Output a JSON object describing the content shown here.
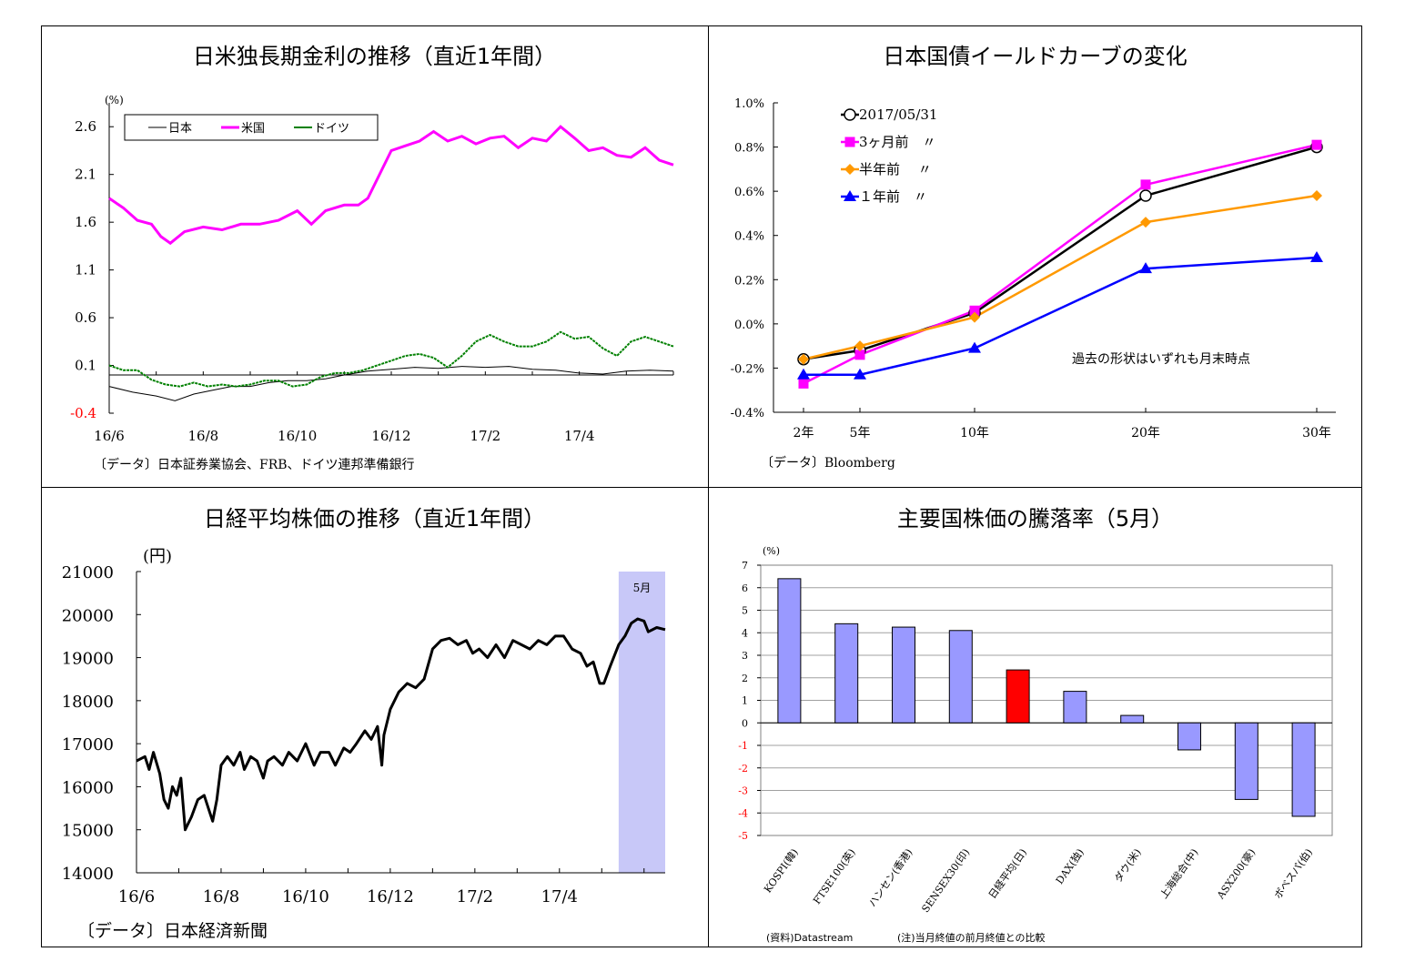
{
  "panel1": {
    "title": "日米独長期金利の推移（直近1年間）",
    "unit": "(%)",
    "source": "〔データ〕日本証券業協会、FRB、ドイツ連邦準備銀行"
  },
  "panel2": {
    "title": "日本国債イールドカーブの変化",
    "note": "過去の形状はいずれも月末時点",
    "source": "〔データ〕Bloomberg"
  },
  "panel3": {
    "title": "日経平均株価の推移（直近1年間）",
    "unit": "(円)",
    "highlight_label": "5月",
    "source": "〔データ〕日本経済新聞"
  },
  "panel4": {
    "title": "主要国株価の騰落率（5月）",
    "unit": "(%)",
    "source_left": "(資料)Datastream",
    "source_right": "(注)当月終値の前月終値との比較"
  },
  "chart_data": [
    {
      "type": "line",
      "title": "日米独長期金利の推移（直近1年間）",
      "ylabel": "(%)",
      "ylim": [
        -0.4,
        2.85
      ],
      "yticks": [
        -0.4,
        0.1,
        0.6,
        1.1,
        1.6,
        2.1,
        2.6
      ],
      "x_ticks": [
        "16/6",
        "16/8",
        "16/10",
        "16/12",
        "17/2",
        "17/4"
      ],
      "x_range_months": [
        0,
        12
      ],
      "legend": "top-left",
      "series": [
        {
          "name": "日本",
          "color": "#000000",
          "points": [
            [
              0,
              -0.12
            ],
            [
              0.5,
              -0.18
            ],
            [
              1,
              -0.22
            ],
            [
              1.4,
              -0.27
            ],
            [
              1.8,
              -0.2
            ],
            [
              2.2,
              -0.16
            ],
            [
              2.6,
              -0.12
            ],
            [
              3.0,
              -0.12
            ],
            [
              3.4,
              -0.08
            ],
            [
              3.8,
              -0.06
            ],
            [
              4.2,
              -0.06
            ],
            [
              4.6,
              -0.04
            ],
            [
              5.0,
              0.0
            ],
            [
              5.5,
              0.04
            ],
            [
              6.0,
              0.06
            ],
            [
              6.5,
              0.08
            ],
            [
              7.0,
              0.07
            ],
            [
              7.5,
              0.09
            ],
            [
              8.0,
              0.08
            ],
            [
              8.5,
              0.09
            ],
            [
              9.0,
              0.06
            ],
            [
              9.5,
              0.05
            ],
            [
              10.0,
              0.02
            ],
            [
              10.5,
              0.01
            ],
            [
              11.0,
              0.04
            ],
            [
              11.5,
              0.05
            ],
            [
              12.0,
              0.04
            ]
          ]
        },
        {
          "name": "米国",
          "color": "#ff00ff",
          "points": [
            [
              0,
              1.85
            ],
            [
              0.3,
              1.75
            ],
            [
              0.6,
              1.62
            ],
            [
              0.9,
              1.58
            ],
            [
              1.1,
              1.45
            ],
            [
              1.3,
              1.38
            ],
            [
              1.6,
              1.5
            ],
            [
              2.0,
              1.55
            ],
            [
              2.4,
              1.52
            ],
            [
              2.8,
              1.58
            ],
            [
              3.2,
              1.58
            ],
            [
              3.6,
              1.62
            ],
            [
              4.0,
              1.72
            ],
            [
              4.3,
              1.58
            ],
            [
              4.6,
              1.72
            ],
            [
              5.0,
              1.78
            ],
            [
              5.3,
              1.78
            ],
            [
              5.5,
              1.85
            ],
            [
              5.8,
              2.15
            ],
            [
              6.0,
              2.35
            ],
            [
              6.3,
              2.4
            ],
            [
              6.6,
              2.45
            ],
            [
              6.9,
              2.55
            ],
            [
              7.2,
              2.45
            ],
            [
              7.5,
              2.5
            ],
            [
              7.8,
              2.42
            ],
            [
              8.1,
              2.48
            ],
            [
              8.4,
              2.5
            ],
            [
              8.7,
              2.38
            ],
            [
              9.0,
              2.48
            ],
            [
              9.3,
              2.45
            ],
            [
              9.6,
              2.6
            ],
            [
              9.9,
              2.48
            ],
            [
              10.2,
              2.35
            ],
            [
              10.5,
              2.38
            ],
            [
              10.8,
              2.3
            ],
            [
              11.1,
              2.28
            ],
            [
              11.4,
              2.38
            ],
            [
              11.7,
              2.25
            ],
            [
              12.0,
              2.2
            ]
          ]
        },
        {
          "name": "ドイツ",
          "color": "#008000",
          "points": [
            [
              0,
              0.1
            ],
            [
              0.3,
              0.05
            ],
            [
              0.6,
              0.05
            ],
            [
              0.9,
              -0.05
            ],
            [
              1.2,
              -0.1
            ],
            [
              1.5,
              -0.12
            ],
            [
              1.8,
              -0.08
            ],
            [
              2.1,
              -0.12
            ],
            [
              2.4,
              -0.1
            ],
            [
              2.7,
              -0.12
            ],
            [
              3.0,
              -0.1
            ],
            [
              3.3,
              -0.06
            ],
            [
              3.6,
              -0.06
            ],
            [
              3.9,
              -0.12
            ],
            [
              4.2,
              -0.1
            ],
            [
              4.5,
              -0.02
            ],
            [
              4.8,
              0.02
            ],
            [
              5.1,
              0.02
            ],
            [
              5.4,
              0.05
            ],
            [
              5.7,
              0.1
            ],
            [
              6.0,
              0.15
            ],
            [
              6.3,
              0.2
            ],
            [
              6.6,
              0.22
            ],
            [
              6.9,
              0.18
            ],
            [
              7.2,
              0.08
            ],
            [
              7.5,
              0.2
            ],
            [
              7.8,
              0.35
            ],
            [
              8.1,
              0.42
            ],
            [
              8.4,
              0.35
            ],
            [
              8.7,
              0.3
            ],
            [
              9.0,
              0.3
            ],
            [
              9.3,
              0.35
            ],
            [
              9.6,
              0.45
            ],
            [
              9.9,
              0.38
            ],
            [
              10.2,
              0.4
            ],
            [
              10.5,
              0.28
            ],
            [
              10.8,
              0.2
            ],
            [
              11.1,
              0.35
            ],
            [
              11.4,
              0.4
            ],
            [
              11.7,
              0.35
            ],
            [
              12.0,
              0.3
            ]
          ]
        }
      ]
    },
    {
      "type": "line",
      "title": "日本国債イールドカーブの変化",
      "categories": [
        "2年",
        "5年",
        "10年",
        "20年",
        "30年"
      ],
      "x_positions_years": [
        2,
        5,
        10,
        20,
        30
      ],
      "ylim": [
        -0.4,
        1.0
      ],
      "yticks": [
        "-0.4%",
        "-0.2%",
        "0.0%",
        "0.2%",
        "0.4%",
        "0.6%",
        "0.8%",
        "1.0%"
      ],
      "legend": "top-left",
      "series": [
        {
          "name": "2017/05/31",
          "color": "#000000",
          "marker": "circle-open",
          "values": [
            -0.16,
            -0.12,
            0.05,
            0.58,
            0.8
          ]
        },
        {
          "name": "3ヶ月前　〃",
          "color": "#ff00ff",
          "marker": "square",
          "values": [
            -0.27,
            -0.14,
            0.06,
            0.63,
            0.81
          ]
        },
        {
          "name": "半年前　 〃",
          "color": "#ff9900",
          "marker": "diamond",
          "values": [
            -0.16,
            -0.1,
            0.03,
            0.46,
            0.58
          ]
        },
        {
          "name": "１年前　〃",
          "color": "#0000ff",
          "marker": "triangle",
          "values": [
            -0.23,
            -0.23,
            -0.11,
            0.25,
            0.3
          ]
        }
      ]
    },
    {
      "type": "line",
      "title": "日経平均株価の推移（直近1年間）",
      "ylabel": "(円)",
      "ylim": [
        14000,
        21000
      ],
      "yticks": [
        14000,
        15000,
        16000,
        17000,
        18000,
        19000,
        20000,
        21000
      ],
      "x_ticks": [
        "16/6",
        "16/8",
        "16/10",
        "16/12",
        "17/2",
        "17/4"
      ],
      "x_range_months": [
        0,
        12.5
      ],
      "highlight": {
        "label": "5月",
        "from": 11.4,
        "to": 12.5,
        "color": "#c8c8f8"
      },
      "series": [
        {
          "name": "日経平均",
          "color": "#000000",
          "points": [
            [
              0,
              16600
            ],
            [
              0.2,
              16700
            ],
            [
              0.3,
              16400
            ],
            [
              0.4,
              16800
            ],
            [
              0.55,
              16300
            ],
            [
              0.65,
              15700
            ],
            [
              0.75,
              15500
            ],
            [
              0.85,
              16000
            ],
            [
              0.95,
              15800
            ],
            [
              1.05,
              16200
            ],
            [
              1.15,
              15000
            ],
            [
              1.3,
              15300
            ],
            [
              1.45,
              15700
            ],
            [
              1.6,
              15800
            ],
            [
              1.7,
              15500
            ],
            [
              1.8,
              15200
            ],
            [
              1.9,
              15700
            ],
            [
              2.0,
              16500
            ],
            [
              2.15,
              16700
            ],
            [
              2.3,
              16500
            ],
            [
              2.45,
              16800
            ],
            [
              2.55,
              16400
            ],
            [
              2.7,
              16700
            ],
            [
              2.85,
              16600
            ],
            [
              3.0,
              16200
            ],
            [
              3.1,
              16600
            ],
            [
              3.25,
              16700
            ],
            [
              3.45,
              16500
            ],
            [
              3.6,
              16800
            ],
            [
              3.8,
              16600
            ],
            [
              4.0,
              17000
            ],
            [
              4.2,
              16500
            ],
            [
              4.35,
              16800
            ],
            [
              4.55,
              16800
            ],
            [
              4.7,
              16500
            ],
            [
              4.9,
              16900
            ],
            [
              5.05,
              16800
            ],
            [
              5.2,
              17000
            ],
            [
              5.4,
              17300
            ],
            [
              5.55,
              17100
            ],
            [
              5.7,
              17400
            ],
            [
              5.8,
              16500
            ],
            [
              5.85,
              17200
            ],
            [
              6.0,
              17800
            ],
            [
              6.2,
              18200
            ],
            [
              6.4,
              18400
            ],
            [
              6.6,
              18300
            ],
            [
              6.8,
              18500
            ],
            [
              7.0,
              19200
            ],
            [
              7.2,
              19400
            ],
            [
              7.4,
              19450
            ],
            [
              7.6,
              19300
            ],
            [
              7.8,
              19400
            ],
            [
              7.95,
              19100
            ],
            [
              8.1,
              19200
            ],
            [
              8.3,
              19000
            ],
            [
              8.5,
              19300
            ],
            [
              8.7,
              19000
            ],
            [
              8.9,
              19400
            ],
            [
              9.1,
              19300
            ],
            [
              9.3,
              19200
            ],
            [
              9.5,
              19400
            ],
            [
              9.7,
              19300
            ],
            [
              9.9,
              19500
            ],
            [
              10.1,
              19500
            ],
            [
              10.3,
              19200
            ],
            [
              10.5,
              19100
            ],
            [
              10.65,
              18800
            ],
            [
              10.8,
              18900
            ],
            [
              10.95,
              18400
            ],
            [
              11.05,
              18400
            ],
            [
              11.2,
              18800
            ],
            [
              11.4,
              19300
            ],
            [
              11.55,
              19500
            ],
            [
              11.7,
              19800
            ],
            [
              11.85,
              19900
            ],
            [
              12.0,
              19850
            ],
            [
              12.1,
              19600
            ],
            [
              12.3,
              19700
            ],
            [
              12.5,
              19650
            ]
          ]
        }
      ]
    },
    {
      "type": "bar",
      "title": "主要国株価の騰落率（5月）",
      "ylabel": "(%)",
      "ylim": [
        -5,
        7
      ],
      "yticks": [
        -5,
        -4,
        -3,
        -2,
        -1,
        0,
        1,
        2,
        3,
        4,
        5,
        6,
        7
      ],
      "categories": [
        "KOSPI(韓)",
        "FTSE100(英)",
        "ハンセン(香港)",
        "SENSEX30(印)",
        "日経平均(日)",
        "DAX(独)",
        "ダウ(米)",
        "上海総合(中)",
        "ASX200(豪)",
        "ボベスパ(伯)"
      ],
      "values": [
        6.4,
        4.4,
        4.25,
        4.1,
        2.35,
        1.4,
        0.33,
        -1.2,
        -3.4,
        -4.15
      ],
      "colors": [
        "#9999ff",
        "#9999ff",
        "#9999ff",
        "#9999ff",
        "#ff0000",
        "#9999ff",
        "#9999ff",
        "#9999ff",
        "#9999ff",
        "#9999ff"
      ]
    }
  ]
}
